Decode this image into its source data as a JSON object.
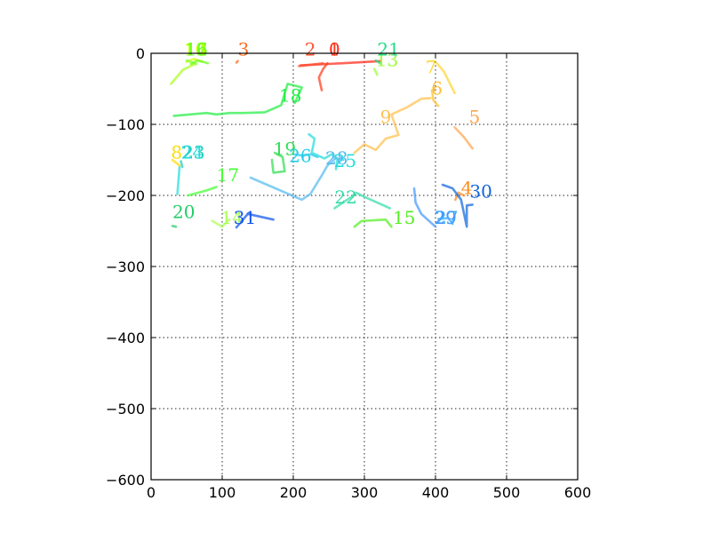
{
  "chart_data": {
    "type": "line",
    "title": "",
    "xlabel": "",
    "ylabel": "",
    "xlim": [
      0,
      600
    ],
    "ylim": [
      -600,
      0
    ],
    "xticks": [
      "0",
      "100",
      "200",
      "300",
      "400",
      "500",
      "600"
    ],
    "yticks": [
      "0",
      "−100",
      "−200",
      "−300",
      "−400",
      "−500",
      "−600"
    ],
    "grid": true,
    "series": [
      {
        "label": "0",
        "color": "#ff2a1a",
        "label_at": [
          250,
          -3
        ],
        "points": [
          [
            210,
            -17
          ],
          [
            250,
            -15
          ],
          [
            323,
            -11
          ]
        ]
      },
      {
        "label": "1",
        "color": "#ff3d1a",
        "label_at": [
          250,
          -3
        ],
        "points": [
          [
            248,
            -14
          ],
          [
            242,
            -22
          ],
          [
            236,
            -34
          ],
          [
            240,
            -52
          ]
        ]
      },
      {
        "label": "2",
        "color": "#ff5030",
        "label_at": [
          216,
          -3
        ],
        "points": [
          [
            208,
            -18
          ],
          [
            242,
            -14
          ]
        ]
      },
      {
        "label": "3",
        "color": "#ff6a1a",
        "label_at": [
          122,
          -3
        ],
        "points": [
          [
            120,
            -13
          ],
          [
            122,
            -11
          ]
        ]
      },
      {
        "label": "4",
        "color": "#ff8c1a",
        "label_at": [
          436,
          -198
        ],
        "points": [
          [
            428,
            -206
          ],
          [
            432,
            -196
          ],
          [
            440,
            -200
          ]
        ]
      },
      {
        "label": "5",
        "color": "#ffa64d",
        "label_at": [
          447,
          -98
        ],
        "points": [
          [
            427,
            -104
          ],
          [
            440,
            -118
          ],
          [
            452,
            -134
          ]
        ]
      },
      {
        "label": "6",
        "color": "#ffbf33",
        "label_at": [
          394,
          -58
        ],
        "points": [
          [
            395,
            -52
          ],
          [
            397,
            -66
          ],
          [
            404,
            -74
          ]
        ]
      },
      {
        "label": "7",
        "color": "#ffd633",
        "label_at": [
          386,
          -28
        ],
        "points": [
          [
            402,
            -14
          ],
          [
            412,
            -26
          ],
          [
            427,
            -56
          ]
        ]
      },
      {
        "label": "8",
        "color": "#ffdd00",
        "label_at": [
          28,
          -148
        ],
        "points": [
          [
            30,
            -150
          ],
          [
            40,
            -158
          ]
        ]
      },
      {
        "label": "9",
        "color": "#ffc04d",
        "label_at": [
          322,
          -98
        ],
        "points": [
          [
            286,
            -140
          ],
          [
            300,
            -128
          ],
          [
            316,
            -136
          ],
          [
            330,
            -120
          ],
          [
            348,
            -115
          ],
          [
            338,
            -86
          ],
          [
            360,
            -76
          ],
          [
            380,
            -64
          ],
          [
            393,
            -63
          ]
        ]
      },
      {
        "label": "10",
        "color": "#ccff00",
        "label_at": [
          46,
          -3
        ],
        "points": [
          [
            50,
            -12
          ],
          [
            60,
            -8
          ],
          [
            72,
            -12
          ]
        ]
      },
      {
        "label": "11",
        "color": "#aaff1a",
        "label_at": [
          48,
          -3
        ],
        "points": [
          [
            28,
            -43
          ],
          [
            45,
            -23
          ],
          [
            62,
            -15
          ]
        ]
      },
      {
        "label": "12",
        "color": "#88ff33",
        "label_at": [
          48,
          -3
        ],
        "points": [
          [
            50,
            -10
          ],
          [
            64,
            -15
          ]
        ]
      },
      {
        "label": "13",
        "color": "#99ff33",
        "label_at": [
          316,
          -18
        ],
        "points": [
          [
            314,
            -22
          ],
          [
            318,
            -30
          ]
        ]
      },
      {
        "label": "14",
        "color": "#aaff55",
        "label_at": [
          98,
          -240
        ],
        "points": [
          [
            86,
            -236
          ],
          [
            100,
            -244
          ],
          [
            110,
            -234
          ]
        ]
      },
      {
        "label": "15",
        "color": "#55ee22",
        "label_at": [
          340,
          -240
        ],
        "points": [
          [
            286,
            -244
          ],
          [
            296,
            -236
          ],
          [
            330,
            -234
          ],
          [
            338,
            -244
          ]
        ]
      },
      {
        "label": "16",
        "color": "#66ff1a",
        "label_at": [
          48,
          -3
        ],
        "points": [
          [
            56,
            -15
          ],
          [
            66,
            -10
          ],
          [
            80,
            -14
          ]
        ]
      },
      {
        "label": "17",
        "color": "#44ff33",
        "label_at": [
          92,
          -180
        ],
        "points": [
          [
            52,
            -200
          ],
          [
            78,
            -193
          ],
          [
            92,
            -188
          ]
        ]
      },
      {
        "label": "18",
        "color": "#22ee44",
        "label_at": [
          180,
          -68
        ],
        "points": [
          [
            32,
            -88
          ],
          [
            78,
            -84
          ],
          [
            92,
            -86
          ],
          [
            110,
            -84
          ],
          [
            130,
            -84
          ],
          [
            160,
            -83
          ],
          [
            183,
            -73
          ],
          [
            192,
            -43
          ],
          [
            212,
            -48
          ],
          [
            202,
            -70
          ]
        ]
      },
      {
        "label": "19",
        "color": "#33dd55",
        "label_at": [
          172,
          -143
        ],
        "points": [
          [
            174,
            -140
          ],
          [
            185,
            -146
          ],
          [
            188,
            -166
          ],
          [
            172,
            -168
          ],
          [
            170,
            -150
          ]
        ]
      },
      {
        "label": "20",
        "color": "#22cc66",
        "label_at": [
          30,
          -232
        ],
        "points": [
          [
            30,
            -243
          ],
          [
            35,
            -244
          ]
        ]
      },
      {
        "label": "21",
        "color": "#22dd88",
        "label_at": [
          318,
          -3
        ],
        "points": [
          [
            316,
            -10
          ],
          [
            322,
            -14
          ]
        ]
      },
      {
        "label": "22",
        "color": "#33ddaa",
        "label_at": [
          258,
          -211
        ],
        "points": [
          [
            258,
            -218
          ],
          [
            282,
            -202
          ],
          [
            288,
            -196
          ],
          [
            300,
            -202
          ],
          [
            336,
            -218
          ]
        ]
      },
      {
        "label": "23",
        "color": "#22ccbb",
        "label_at": [
          44,
          -148
        ],
        "points": [
          [
            42,
            -152
          ],
          [
            44,
            -160
          ]
        ]
      },
      {
        "label": "24",
        "color": "#22dddd",
        "label_at": [
          42,
          -148
        ],
        "points": [
          [
            40,
            -160
          ],
          [
            37,
            -198
          ]
        ]
      },
      {
        "label": "25",
        "color": "#22dddd",
        "label_at": [
          257,
          -160
        ],
        "points": [
          [
            222,
            -114
          ],
          [
            230,
            -120
          ],
          [
            226,
            -140
          ],
          [
            244,
            -148
          ],
          [
            254,
            -142
          ],
          [
            262,
            -150
          ],
          [
            260,
            -163
          ]
        ]
      },
      {
        "label": "26",
        "color": "#22ccee",
        "label_at": [
          194,
          -153
        ],
        "points": [
          [
            200,
            -142
          ],
          [
            214,
            -144
          ],
          [
            224,
            -142
          ],
          [
            234,
            -146
          ]
        ]
      },
      {
        "label": "27",
        "color": "#33aaff",
        "label_at": [
          400,
          -240
        ],
        "points": [
          [
            404,
            -233
          ],
          [
            418,
            -232
          ],
          [
            424,
            -240
          ]
        ]
      },
      {
        "label": "28",
        "color": "#55bbee",
        "label_at": [
          245,
          -156
        ],
        "points": [
          [
            140,
            -175
          ],
          [
            212,
            -206
          ],
          [
            224,
            -198
          ],
          [
            240,
            -172
          ],
          [
            248,
            -158
          ],
          [
            260,
            -147
          ],
          [
            270,
            -150
          ]
        ]
      },
      {
        "label": "29",
        "color": "#4499ff",
        "label_at": [
          398,
          -240
        ],
        "points": [
          [
            370,
            -190
          ],
          [
            372,
            -210
          ],
          [
            380,
            -226
          ],
          [
            400,
            -244
          ]
        ]
      },
      {
        "label": "30",
        "color": "#1166dd",
        "label_at": [
          448,
          -203
        ],
        "points": [
          [
            410,
            -185
          ],
          [
            424,
            -190
          ],
          [
            436,
            -206
          ],
          [
            444,
            -244
          ],
          [
            444,
            -214
          ],
          [
            452,
            -213
          ]
        ]
      },
      {
        "label": "31",
        "color": "#1155ee",
        "label_at": [
          116,
          -240
        ],
        "points": [
          [
            120,
            -245
          ],
          [
            136,
            -226
          ],
          [
            172,
            -234
          ]
        ]
      }
    ]
  }
}
